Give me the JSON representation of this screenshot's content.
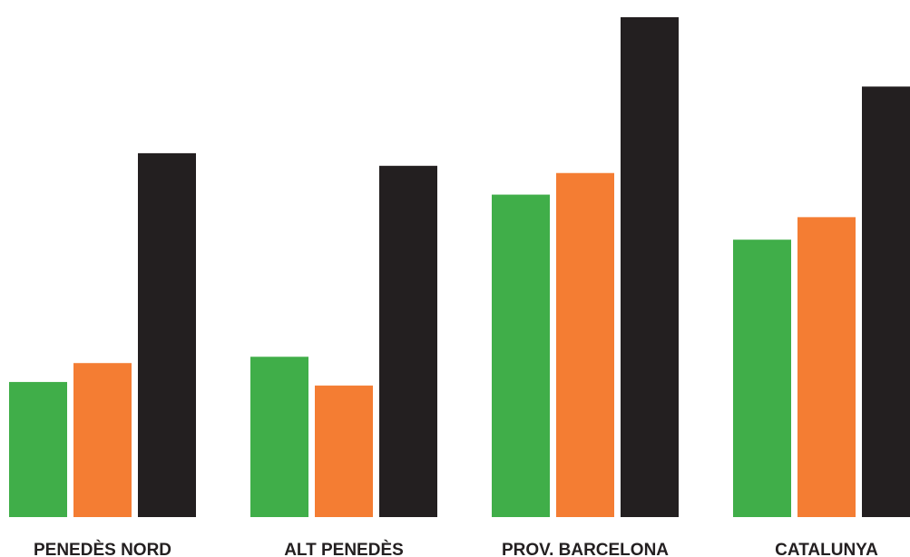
{
  "chart_data": {
    "type": "bar",
    "categories": [
      "PENEDÈS NORD",
      "ALT PENEDÈS",
      "PROV. BARCELONA",
      "CATALUNYA"
    ],
    "series": [
      {
        "values": [
          150,
          178,
          358,
          308
        ]
      },
      {
        "values": [
          171,
          146,
          382,
          333
        ]
      },
      {
        "values": [
          404,
          390,
          555,
          478
        ]
      }
    ],
    "colors": [
      "#40ae49",
      "#f47d33",
      "#231f20"
    ],
    "ylim": [
      0,
      560
    ],
    "grid": false,
    "legend": "none"
  }
}
